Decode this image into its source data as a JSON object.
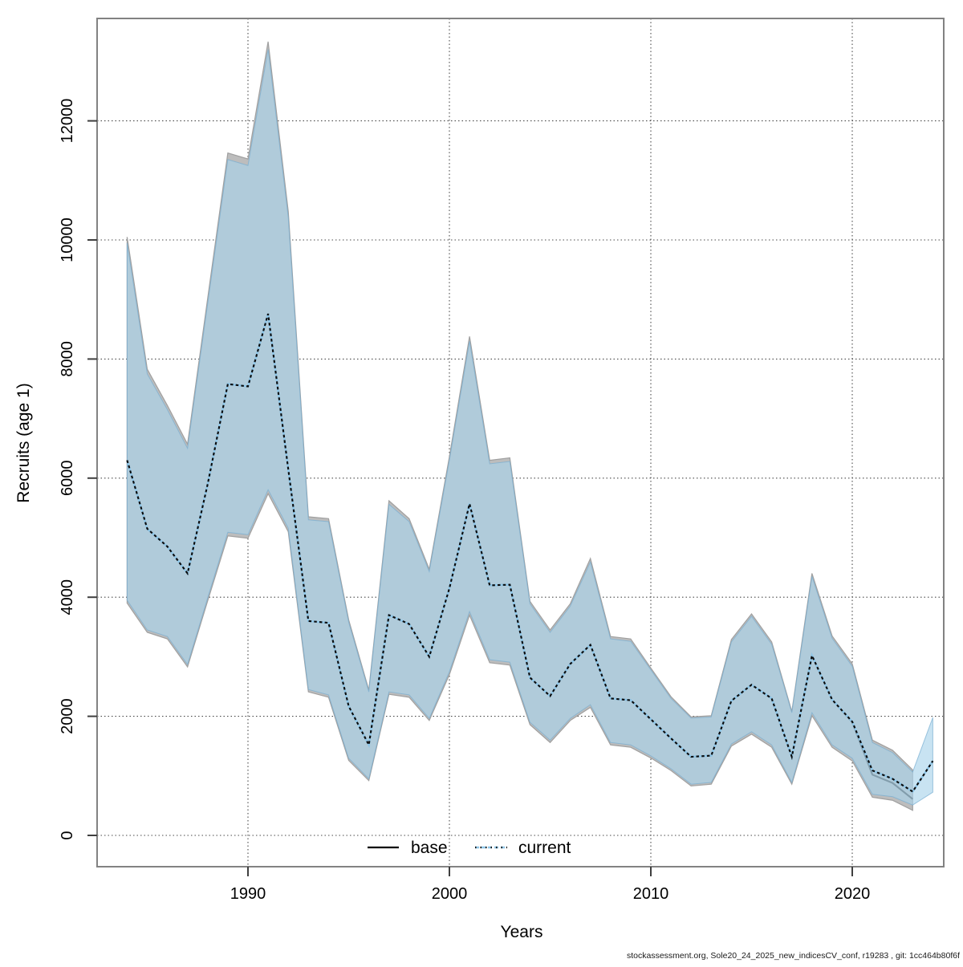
{
  "chart_data": {
    "type": "line",
    "title": "",
    "xlabel": "Years",
    "ylabel": "Recruits (age 1)",
    "xticks": [
      1990,
      2000,
      2010,
      2020
    ],
    "yticks": [
      0,
      2000,
      4000,
      6000,
      8000,
      10000,
      12000
    ],
    "xlim": [
      1982.5,
      2024.6
    ],
    "ylim": [
      0,
      13700
    ],
    "grid": "dotted",
    "legend_position": "bottom-center-inside",
    "legend": {
      "items": [
        {
          "label": "base",
          "line_style": "solid",
          "color": "#000000"
        },
        {
          "label": "current",
          "line_style": "dotted",
          "color": "#8ec6e8"
        }
      ]
    },
    "series": [
      {
        "name": "base",
        "line_style": "solid",
        "years": [
          1984,
          1985,
          1986,
          1987,
          1988,
          1989,
          1990,
          1991,
          1992,
          1993,
          1994,
          1995,
          1996,
          1997,
          1998,
          1999,
          2000,
          2001,
          2002,
          2003,
          2004,
          2005,
          2006,
          2007,
          2008,
          2009,
          2010,
          2011,
          2012,
          2013,
          2014,
          2015,
          2016,
          2017,
          2018,
          2019,
          2020,
          2021,
          2022,
          2023
        ],
        "values": [
          6300,
          5150,
          4850,
          4400,
          5900,
          7580,
          7540,
          8760,
          6150,
          3600,
          3570,
          2170,
          1520,
          3700,
          3550,
          3000,
          4150,
          5570,
          4200,
          4210,
          2650,
          2340,
          2880,
          3200,
          2300,
          2270,
          1950,
          1630,
          1320,
          1340,
          2260,
          2530,
          2300,
          1320,
          3020,
          2280,
          1900,
          1020,
          880,
          610
        ],
        "band_upper": [
          10050,
          7830,
          7220,
          6570,
          9020,
          11460,
          11360,
          13330,
          10480,
          5350,
          5320,
          3620,
          2440,
          5620,
          5320,
          4470,
          6360,
          8380,
          6300,
          6340,
          3930,
          3450,
          3890,
          4650,
          3340,
          3300,
          2810,
          2330,
          1990,
          2010,
          3290,
          3720,
          3250,
          2080,
          4400,
          3350,
          2880,
          1600,
          1430,
          1100
        ],
        "band_lower": [
          3900,
          3410,
          3300,
          2830,
          3940,
          5030,
          4990,
          5740,
          5100,
          2410,
          2320,
          1260,
          920,
          2370,
          2320,
          1930,
          2700,
          3700,
          2900,
          2860,
          1860,
          1560,
          1930,
          2150,
          1520,
          1480,
          1300,
          1090,
          830,
          860,
          1500,
          1700,
          1480,
          860,
          2010,
          1480,
          1250,
          640,
          590,
          420
        ]
      },
      {
        "name": "current",
        "line_style": "dotted",
        "years": [
          1984,
          1985,
          1986,
          1987,
          1988,
          1989,
          1990,
          1991,
          1992,
          1993,
          1994,
          1995,
          1996,
          1997,
          1998,
          1999,
          2000,
          2001,
          2002,
          2003,
          2004,
          2005,
          2006,
          2007,
          2008,
          2009,
          2010,
          2011,
          2012,
          2013,
          2014,
          2015,
          2016,
          2017,
          2018,
          2019,
          2020,
          2021,
          2022,
          2023,
          2024
        ],
        "values": [
          6300,
          5150,
          4850,
          4400,
          5900,
          7580,
          7540,
          8760,
          6150,
          3600,
          3570,
          2170,
          1520,
          3700,
          3550,
          3000,
          4150,
          5570,
          4200,
          4210,
          2650,
          2340,
          2880,
          3200,
          2300,
          2270,
          1950,
          1630,
          1320,
          1340,
          2260,
          2530,
          2300,
          1320,
          3020,
          2280,
          1910,
          1090,
          950,
          735,
          1250
        ],
        "band_upper": [
          9950,
          7750,
          7150,
          6500,
          8930,
          11350,
          11250,
          13200,
          10380,
          5300,
          5270,
          3580,
          2410,
          5560,
          5270,
          4430,
          6300,
          8300,
          6240,
          6280,
          3890,
          3410,
          3850,
          4590,
          3300,
          3260,
          2780,
          2300,
          1970,
          1990,
          3250,
          3680,
          3210,
          2060,
          4350,
          3310,
          2840,
          1560,
          1390,
          1065,
          1980
        ],
        "band_lower": [
          3950,
          3450,
          3340,
          2870,
          3990,
          5090,
          5050,
          5805,
          5160,
          2450,
          2360,
          1295,
          950,
          2410,
          2360,
          1965,
          2750,
          3760,
          2950,
          2910,
          1900,
          1600,
          1965,
          2195,
          1560,
          1520,
          1335,
          1120,
          860,
          890,
          1535,
          1740,
          1520,
          890,
          2060,
          1520,
          1295,
          690,
          650,
          510,
          725
        ]
      }
    ],
    "colors": {
      "base_band_fill": "#bdbdbd",
      "base_band_edge": "#a0a0a0",
      "base_line": "#3a3a3a",
      "current_band_fill": "#a9d3eb",
      "current_band_opacity": "0.64",
      "current_band_edge": "#77aed2",
      "current_line_under": "#8ec6e8",
      "current_line_dash": "#0b0b0b",
      "grid": "#4a4a4a",
      "box": "#828282",
      "tick": "#3f3f3f"
    }
  },
  "footer": {
    "text": "stockassessment.org, Sole20_24_2025_new_indicesCV_conf, r19283 , git: 1cc464b80f6f"
  }
}
